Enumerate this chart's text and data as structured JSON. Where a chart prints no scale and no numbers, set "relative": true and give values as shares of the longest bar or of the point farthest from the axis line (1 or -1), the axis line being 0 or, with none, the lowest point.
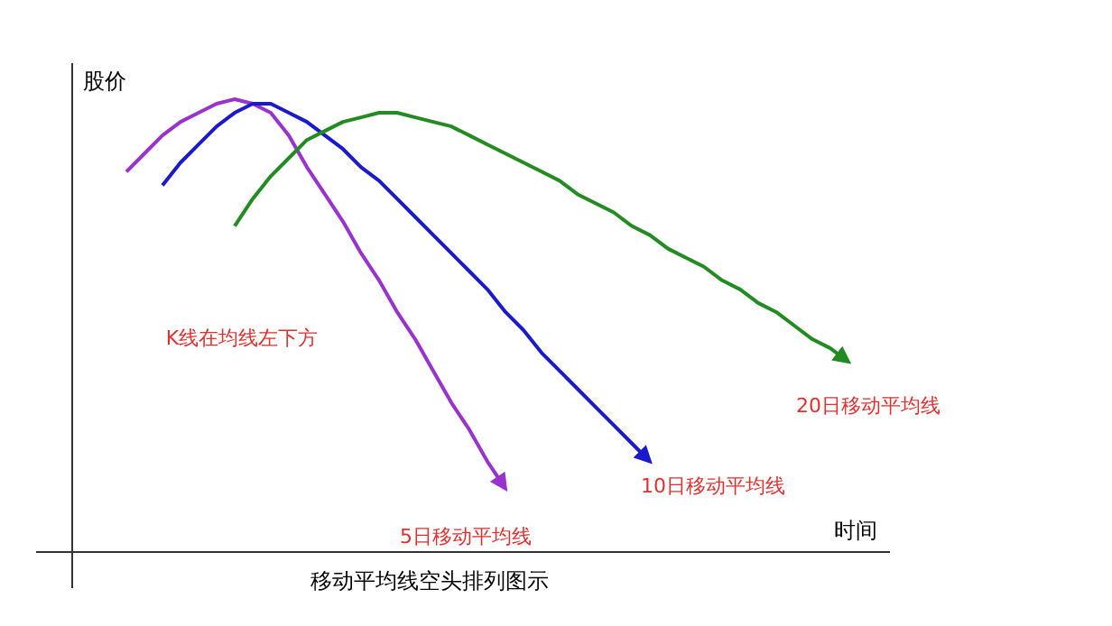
{
  "chart_data": {
    "type": "line",
    "title": "移动平均线空头排列图示",
    "xlabel": "时间",
    "ylabel": "股价",
    "relative": true,
    "categories": [
      null,
      null,
      null,
      null,
      null,
      null,
      null,
      null,
      null,
      null,
      null,
      null,
      null,
      null,
      null,
      null,
      null,
      null,
      null,
      null,
      null,
      null,
      null,
      null,
      null,
      null,
      null,
      null,
      null,
      null,
      null,
      null,
      null,
      null,
      null,
      null,
      null,
      null,
      null,
      null,
      null,
      null,
      null,
      null
    ],
    "annotations": [
      {
        "text": "K线在均线左下方"
      }
    ],
    "series": [
      {
        "name": "5日移动平均线",
        "color": "#9933cc",
        "values": [
          null,
          null,
          0.84,
          0.88,
          0.92,
          0.95,
          0.97,
          0.99,
          1.0,
          0.99,
          0.97,
          0.92,
          0.85,
          0.79,
          0.73,
          0.66,
          0.6,
          0.53,
          0.47,
          0.4,
          0.33,
          0.27,
          0.2,
          0.14,
          null,
          null,
          null,
          null,
          null,
          null,
          null,
          null,
          null,
          null,
          null,
          null,
          null,
          null,
          null,
          null,
          null,
          null,
          null,
          null
        ]
      },
      {
        "name": "10日移动平均线",
        "color": "#1a1acc",
        "values": [
          null,
          null,
          null,
          null,
          0.81,
          0.86,
          0.9,
          0.94,
          0.97,
          0.99,
          0.99,
          0.97,
          0.95,
          0.92,
          0.89,
          0.85,
          0.82,
          0.78,
          0.74,
          0.7,
          0.66,
          0.62,
          0.58,
          0.53,
          0.49,
          0.44,
          0.4,
          0.36,
          0.32,
          0.28,
          0.24,
          0.2,
          null,
          null,
          null,
          null,
          null,
          null,
          null,
          null,
          null,
          null,
          null,
          null
        ]
      },
      {
        "name": "20日移动平均线",
        "color": "#228b22",
        "values": [
          null,
          null,
          null,
          null,
          null,
          null,
          null,
          null,
          0.72,
          0.78,
          0.83,
          0.87,
          0.91,
          0.93,
          0.95,
          0.96,
          0.97,
          0.97,
          0.96,
          0.95,
          0.94,
          0.92,
          0.9,
          0.88,
          0.86,
          0.84,
          0.82,
          0.79,
          0.77,
          0.75,
          0.72,
          0.7,
          0.67,
          0.65,
          0.63,
          0.6,
          0.58,
          0.55,
          0.53,
          0.5,
          0.47,
          0.45,
          0.42,
          null
        ]
      }
    ]
  }
}
